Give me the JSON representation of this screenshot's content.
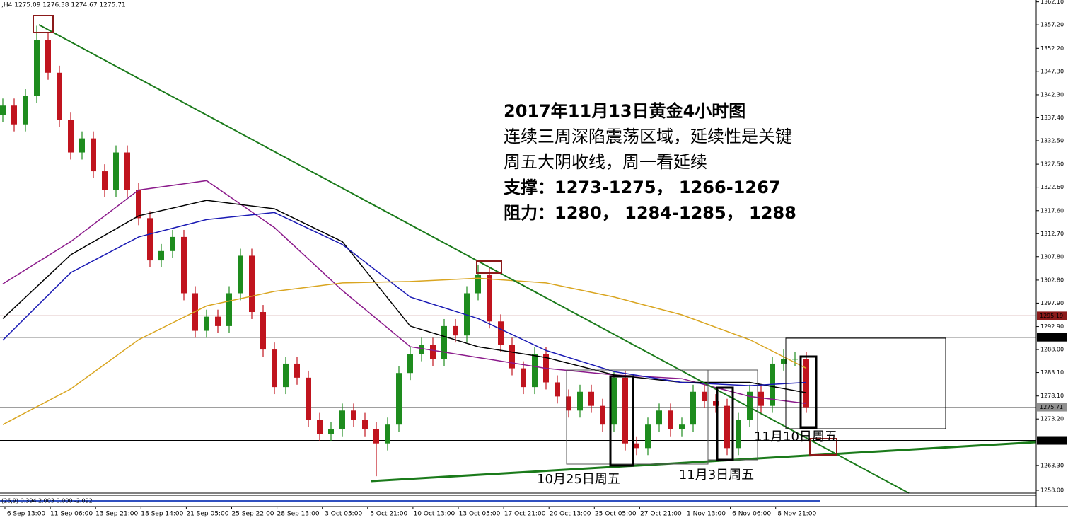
{
  "chart_data": {
    "type": "candlestick",
    "header": ",H4  1275.09 1276.38 1274.67 1275.71",
    "indicator_text": "(26,9) 0.394 2.003 0.000 -2.092",
    "x_labels": [
      "6 Sep 13:00",
      "11 Sep 06:00",
      "13 Sep 21:00",
      "18 Sep 14:00",
      "21 Sep 05:00",
      "25 Sep 22:00",
      "28 Sep 13:00",
      "3 Oct 05:00",
      "5 Oct 21:00",
      "10 Oct 13:00",
      "13 Oct 05:00",
      "17 Oct 21:00",
      "20 Oct 13:00",
      "25 Oct 05:00",
      "27 Oct 21:00",
      "1 Nov 13:00",
      "6 Nov 06:00",
      "8 Nov 21:00"
    ],
    "ylim": [
      1257.4,
      1362.5
    ],
    "yticks": [
      {
        "value": 1362.1,
        "label": "1362.10"
      },
      {
        "value": 1357.2,
        "label": "1357.20"
      },
      {
        "value": 1352.2,
        "label": "1352.20"
      },
      {
        "value": 1347.3,
        "label": "1347.30"
      },
      {
        "value": 1342.3,
        "label": "1342.30"
      },
      {
        "value": 1337.4,
        "label": "1337.40"
      },
      {
        "value": 1332.5,
        "label": "1332.50"
      },
      {
        "value": 1327.5,
        "label": "1327.50"
      },
      {
        "value": 1322.6,
        "label": "1322.60"
      },
      {
        "value": 1317.6,
        "label": "1317.60"
      },
      {
        "value": 1312.7,
        "label": "1312.70"
      },
      {
        "value": 1307.8,
        "label": "1307.80"
      },
      {
        "value": 1302.8,
        "label": "1302.80"
      },
      {
        "value": 1297.9,
        "label": "1297.90"
      },
      {
        "value": 1292.9,
        "label": "1292.90"
      },
      {
        "value": 1288.0,
        "label": "1288.00"
      },
      {
        "value": 1283.1,
        "label": "1283.10"
      },
      {
        "value": 1278.1,
        "label": "1278.10"
      },
      {
        "value": 1273.2,
        "label": "1273.20"
      },
      {
        "value": 1263.3,
        "label": "1263.30"
      },
      {
        "value": 1258.0,
        "label": "1258.00"
      }
    ],
    "candles": {
      "up_color": "#1e8c1e",
      "down_color": "#c0141e",
      "open": [
        1338,
        1340,
        1336,
        1342,
        1354,
        1347,
        1337,
        1330,
        1333,
        1326,
        1322,
        1330,
        1322,
        1316,
        1307,
        1309,
        1312,
        1300,
        1292,
        1295,
        1293,
        1300,
        1308,
        1296,
        1288,
        1280,
        1285,
        1282,
        1273,
        1270,
        1271,
        1275,
        1273,
        1271,
        1268,
        1272,
        1283,
        1287,
        1289,
        1286,
        1293,
        1291,
        1300,
        1304,
        1294,
        1289,
        1284,
        1280,
        1287,
        1281,
        1278,
        1275,
        1279,
        1276,
        1272,
        1282,
        1268,
        1267,
        1272,
        1275,
        1271,
        1272,
        1279,
        1277,
        1276,
        1267,
        1273,
        1279,
        1276,
        1285,
        1286,
        1286
      ],
      "high": [
        1341.5,
        1341.5,
        1343.5,
        1357,
        1355.5,
        1348.5,
        1338.5,
        1334.5,
        1334.5,
        1327.5,
        1331.5,
        1331.5,
        1323.5,
        1317.5,
        1310.5,
        1313.5,
        1313.5,
        1301.5,
        1296.5,
        1296.5,
        1301.5,
        1309.5,
        1309.5,
        1297.5,
        1289.5,
        1286.5,
        1286.5,
        1283.5,
        1274.5,
        1272.5,
        1276.5,
        1276.5,
        1274.5,
        1272.5,
        1273.5,
        1284.5,
        1288.5,
        1290.5,
        1290.5,
        1294.5,
        1294.5,
        1301.5,
        1306,
        1305.5,
        1295.5,
        1290.5,
        1285.5,
        1288.5,
        1288.5,
        1282.5,
        1279.5,
        1280.5,
        1280.5,
        1277.5,
        1283.5,
        1283.5,
        1269.5,
        1273.5,
        1276.5,
        1276.5,
        1273.5,
        1280.5,
        1280.5,
        1278.5,
        1277.5,
        1274.5,
        1280.5,
        1280.5,
        1286.5,
        1288,
        1287.5,
        1287.5
      ],
      "low": [
        1336.5,
        1334.5,
        1334.5,
        1340.5,
        1345.5,
        1335.5,
        1328.5,
        1328.5,
        1324.5,
        1320.5,
        1320.5,
        1320.5,
        1314.5,
        1305.5,
        1305.5,
        1307.5,
        1298.5,
        1290.5,
        1290.5,
        1291.5,
        1291.5,
        1298.5,
        1294.5,
        1286.5,
        1278.5,
        1278.5,
        1280.5,
        1271.5,
        1268.5,
        1268.5,
        1269.5,
        1271.5,
        1269.5,
        1261,
        1266.5,
        1270.5,
        1281.5,
        1285.5,
        1284.5,
        1284.5,
        1289.5,
        1289.5,
        1298.5,
        1292.5,
        1287.5,
        1282.5,
        1278.5,
        1278.5,
        1279.5,
        1276.5,
        1273.5,
        1273.5,
        1274.5,
        1270.5,
        1270.5,
        1266.5,
        1265.5,
        1265.5,
        1270.5,
        1269.5,
        1269.5,
        1270.5,
        1275.5,
        1274.5,
        1265.5,
        1265.5,
        1271.5,
        1274.5,
        1274.5,
        1283.5,
        1284.5,
        1274.5
      ],
      "close": [
        1340,
        1336,
        1342,
        1354,
        1347,
        1337,
        1330,
        1333,
        1326,
        1322,
        1330,
        1322,
        1316,
        1307,
        1309,
        1312,
        1300,
        1292,
        1295,
        1293,
        1300,
        1308,
        1296,
        1288,
        1280,
        1285,
        1282,
        1273,
        1270,
        1271,
        1275,
        1273,
        1271,
        1268,
        1272,
        1283,
        1287,
        1289,
        1286,
        1293,
        1291,
        1300,
        1304,
        1294,
        1289,
        1284,
        1280,
        1287,
        1281,
        1278,
        1275,
        1279,
        1276,
        1272,
        1282,
        1268,
        1267,
        1272,
        1275,
        1271,
        1272,
        1279,
        1277,
        1276,
        1267,
        1273,
        1279,
        1276,
        1285,
        1286,
        1286,
        1275.71
      ]
    },
    "moving_averages": {
      "x": [
        0,
        6,
        12,
        18,
        24,
        30,
        36,
        42,
        48,
        54,
        60,
        66,
        71
      ],
      "series": [
        {
          "color": "#8b1a8b",
          "values": [
            1302,
            1311,
            1322,
            1324,
            1314,
            1300.6,
            1288.6,
            1286.3,
            1284,
            1282.6,
            1281.8,
            1278,
            1276.5
          ]
        },
        {
          "color": "#000000",
          "values": [
            1294.6,
            1308.2,
            1316.5,
            1319.8,
            1318,
            1311,
            1293,
            1288.6,
            1286.3,
            1282.6,
            1281,
            1281,
            1278.8
          ]
        },
        {
          "color": "#1a1ab4",
          "values": [
            1290,
            1304.4,
            1312,
            1315.7,
            1317.2,
            1310.4,
            1299.2,
            1294.6,
            1287.8,
            1283.3,
            1281,
            1280.3,
            1281
          ]
        },
        {
          "color": "#d9a520",
          "values": [
            1272,
            1279.6,
            1290.1,
            1297.3,
            1300.4,
            1302.2,
            1302.5,
            1303.2,
            1302.2,
            1299.2,
            1295.4,
            1290.1,
            1284
          ]
        }
      ]
    },
    "levels": [
      {
        "value": 1295.19,
        "color": "#8b1a1a"
      },
      {
        "value": 1290.62,
        "color": "#000000"
      },
      {
        "value": 1275.71,
        "color": "#909090"
      },
      {
        "value": 1268.63,
        "color": "#000000"
      }
    ],
    "annotation": {
      "title": "2017年11月13日黄金4小时图",
      "lines": [
        "连续三周深陷震荡区域，延续性是关键",
        "周五大阴收线，周一看延续",
        "支撑：1273-1275， 1266-1267",
        "阻力：1280， 1284-1285， 1288"
      ]
    },
    "period_labels": [
      "10月25日周五",
      "11月3日周五",
      "11月10日周五"
    ]
  }
}
